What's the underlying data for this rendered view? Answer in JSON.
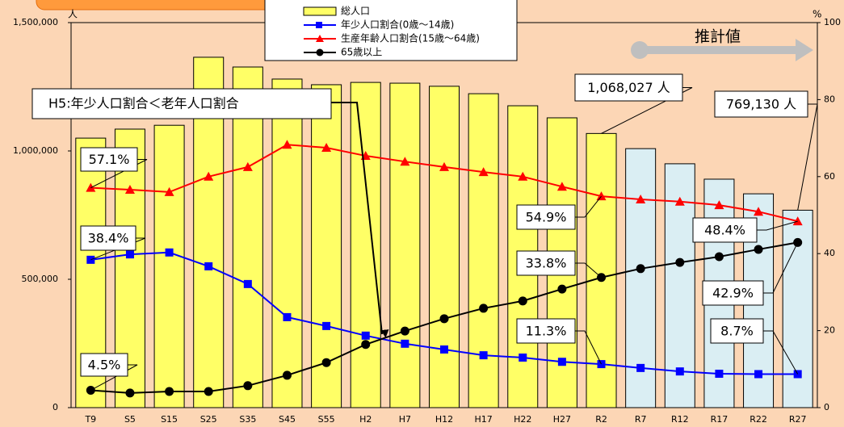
{
  "chart_data": {
    "type": "combo",
    "categories": [
      "T9",
      "S5",
      "S15",
      "S25",
      "S35",
      "S45",
      "S55",
      "H2",
      "H7",
      "H12",
      "H17",
      "H22",
      "H27",
      "R2",
      "R7",
      "R12",
      "R17",
      "R22",
      "R27"
    ],
    "ylabel": "人",
    "y2label": "%",
    "ylim": [
      0,
      1500000
    ],
    "yticks": [
      0,
      {
        "value": 500000,
        "label": "500,000"
      },
      {
        "value": 1000000,
        "label": "1,000,000"
      },
      {
        "value": 1500000,
        "label": "1,500,000"
      }
    ],
    "y2lim": [
      0,
      100
    ],
    "y2ticks": [
      0,
      20,
      40,
      60,
      80,
      100
    ],
    "series": [
      {
        "name": "総人口",
        "type": "bar",
        "color": "#ffff66",
        "colors": [
          "#ffff66",
          "#ffff66",
          "#ffff66",
          "#ffff66",
          "#ffff66",
          "#ffff66",
          "#ffff66",
          "#ffff66",
          "#ffff66",
          "#ffff66",
          "#ffff66",
          "#ffff66",
          "#ffff66",
          "#ffff66",
          "#daeef3",
          "#daeef3",
          "#daeef3",
          "#daeef3",
          "#daeef3"
        ],
        "values": [
          1050000,
          1085000,
          1100000,
          1365000,
          1327000,
          1280000,
          1258000,
          1267000,
          1264000,
          1252000,
          1223000,
          1176000,
          1129000,
          1068027,
          1009000,
          950000,
          890000,
          833000,
          769130
        ],
        "value_labels": [
          null,
          null,
          null,
          null,
          null,
          null,
          null,
          null,
          null,
          null,
          null,
          null,
          null,
          "1,068,027 人",
          null,
          null,
          null,
          null,
          "769,130 人"
        ]
      },
      {
        "name": "年少人口割合(0歳～14歳)",
        "type": "line",
        "axis": "y2",
        "color": "#0000ff",
        "marker": "square",
        "values": [
          38.4,
          39.8,
          40.3,
          36.7,
          32.1,
          23.5,
          21.2,
          18.7,
          16.6,
          15.1,
          13.6,
          13.0,
          11.9,
          11.3,
          10.3,
          9.4,
          8.8,
          8.7,
          8.7
        ],
        "value_labels": [
          "38.4%",
          null,
          null,
          null,
          null,
          null,
          null,
          null,
          null,
          null,
          null,
          null,
          null,
          "11.3%",
          null,
          null,
          null,
          null,
          "8.7%"
        ]
      },
      {
        "name": "生産年齢人口割合(15歳～64歳)",
        "type": "line",
        "axis": "y2",
        "color": "#ff0000",
        "marker": "triangle",
        "values": [
          57.1,
          56.6,
          56.0,
          60.0,
          62.5,
          68.3,
          67.5,
          65.4,
          63.9,
          62.5,
          61.2,
          60.0,
          57.4,
          54.9,
          54.1,
          53.5,
          52.6,
          50.9,
          48.4
        ],
        "value_labels": [
          "57.1%",
          null,
          null,
          null,
          null,
          null,
          null,
          null,
          null,
          null,
          null,
          null,
          null,
          "54.9%",
          null,
          null,
          null,
          null,
          "48.4%"
        ]
      },
      {
        "name": "65歳以上",
        "type": "line",
        "axis": "y2",
        "color": "#000000",
        "marker": "circle",
        "values": [
          4.5,
          3.8,
          4.2,
          4.2,
          5.7,
          8.4,
          11.7,
          16.4,
          19.9,
          23.1,
          25.8,
          27.7,
          30.8,
          33.8,
          36.1,
          37.7,
          39.2,
          41.1,
          42.9
        ],
        "value_labels": [
          "4.5%",
          null,
          null,
          null,
          null,
          null,
          null,
          null,
          null,
          null,
          null,
          null,
          null,
          "33.8%",
          null,
          null,
          null,
          null,
          "42.9%"
        ]
      }
    ],
    "annotations": [
      "H5:年少人口割合＜老年人口割合",
      "推計値"
    ]
  }
}
